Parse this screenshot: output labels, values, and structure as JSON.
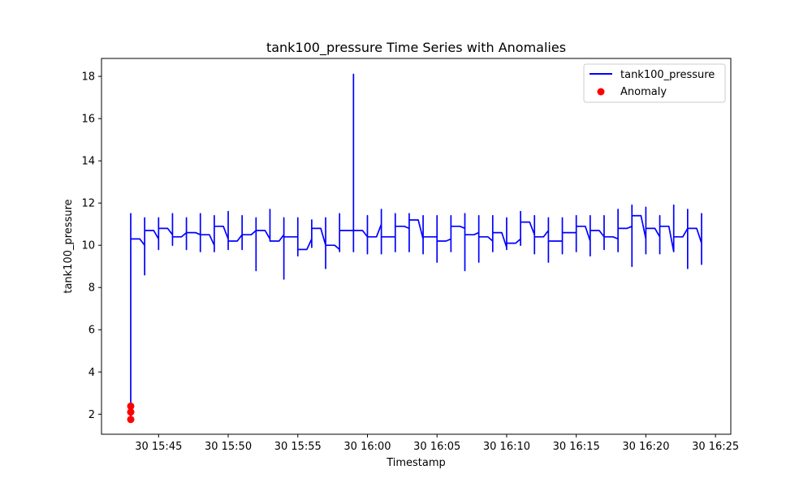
{
  "chart_data": {
    "type": "line",
    "title": "tank100_pressure Time Series with Anomalies",
    "xlabel": "Timestamp",
    "ylabel": "tank100_pressure",
    "x_tick_labels": [
      "30 15:45",
      "30 15:50",
      "30 15:55",
      "30 16:00",
      "30 16:05",
      "30 16:10",
      "30 16:15",
      "30 16:20",
      "30 16:25"
    ],
    "x_tick_minutes": [
      45,
      50,
      55,
      60,
      65,
      70,
      75,
      80,
      85
    ],
    "xlim_minutes": [
      40.9,
      86.1
    ],
    "ylim": [
      1.05,
      18.85
    ],
    "y_ticks": [
      2,
      4,
      6,
      8,
      10,
      12,
      14,
      16,
      18
    ],
    "legend": {
      "position": "top-right",
      "entries": [
        "tank100_pressure",
        "Anomaly"
      ]
    },
    "colors": {
      "line": "#0000ff",
      "anomaly": "#ff0000"
    },
    "series": [
      {
        "name": "tank100_pressure",
        "minutes": [
          43,
          44,
          45,
          46,
          47,
          48,
          49,
          50,
          51,
          52,
          53,
          54,
          55,
          56,
          57,
          58,
          59,
          60,
          61,
          62,
          63,
          64,
          65,
          66,
          67,
          68,
          69,
          70,
          71,
          72,
          73,
          74,
          75,
          76,
          77,
          78,
          79,
          80,
          81,
          82,
          83,
          84
        ],
        "start": [
          1.8,
          10.0,
          10.3,
          10.5,
          10.6,
          10.5,
          10.0,
          10.3,
          10.5,
          10.7,
          10.3,
          10.5,
          10.4,
          10.3,
          10.0,
          9.8,
          10.7,
          10.4,
          11.0,
          10.4,
          10.8,
          10.3,
          10.4,
          10.3,
          10.8,
          10.6,
          10.2,
          9.9,
          10.3,
          10.5,
          10.7,
          10.2,
          10.6,
          10.2,
          10.4,
          10.3,
          10.9,
          10.3,
          10.4,
          9.7,
          10.8,
          10.1
        ],
        "high": [
          11.5,
          11.3,
          11.3,
          11.5,
          11.3,
          11.5,
          11.4,
          11.6,
          11.4,
          11.3,
          11.7,
          11.3,
          11.3,
          11.2,
          11.3,
          11.5,
          18.1,
          11.4,
          11.7,
          11.5,
          11.5,
          11.4,
          11.4,
          11.4,
          11.5,
          11.4,
          11.4,
          11.3,
          11.6,
          11.4,
          11.3,
          11.3,
          11.4,
          11.4,
          11.4,
          11.7,
          11.9,
          11.8,
          11.4,
          11.9,
          11.7,
          11.5
        ],
        "low": [
          1.8,
          8.6,
          9.8,
          10.0,
          9.8,
          9.7,
          9.7,
          9.8,
          9.8,
          8.8,
          10.3,
          8.4,
          9.5,
          9.9,
          8.9,
          9.7,
          9.7,
          9.6,
          9.6,
          9.7,
          9.7,
          9.6,
          9.2,
          9.7,
          8.8,
          9.2,
          9.7,
          9.8,
          10.0,
          9.6,
          9.2,
          9.6,
          9.7,
          9.5,
          9.8,
          9.7,
          9.0,
          9.6,
          9.6,
          9.7,
          8.9,
          9.1
        ],
        "end": [
          10.3,
          10.7,
          10.8,
          10.4,
          10.6,
          10.5,
          10.9,
          10.2,
          10.5,
          10.7,
          10.2,
          10.4,
          9.8,
          10.8,
          10.0,
          10.7,
          10.7,
          10.4,
          10.4,
          10.9,
          11.2,
          10.4,
          10.2,
          10.9,
          10.5,
          10.4,
          10.6,
          10.1,
          11.1,
          10.4,
          10.2,
          10.6,
          10.9,
          10.7,
          10.4,
          10.8,
          11.4,
          10.8,
          10.9,
          10.4,
          10.8,
          11.0
        ]
      },
      {
        "name": "Anomaly",
        "points": [
          {
            "minute": 43,
            "value": 1.75
          },
          {
            "minute": 43,
            "value": 2.1
          },
          {
            "minute": 43,
            "value": 2.38
          }
        ]
      }
    ]
  }
}
